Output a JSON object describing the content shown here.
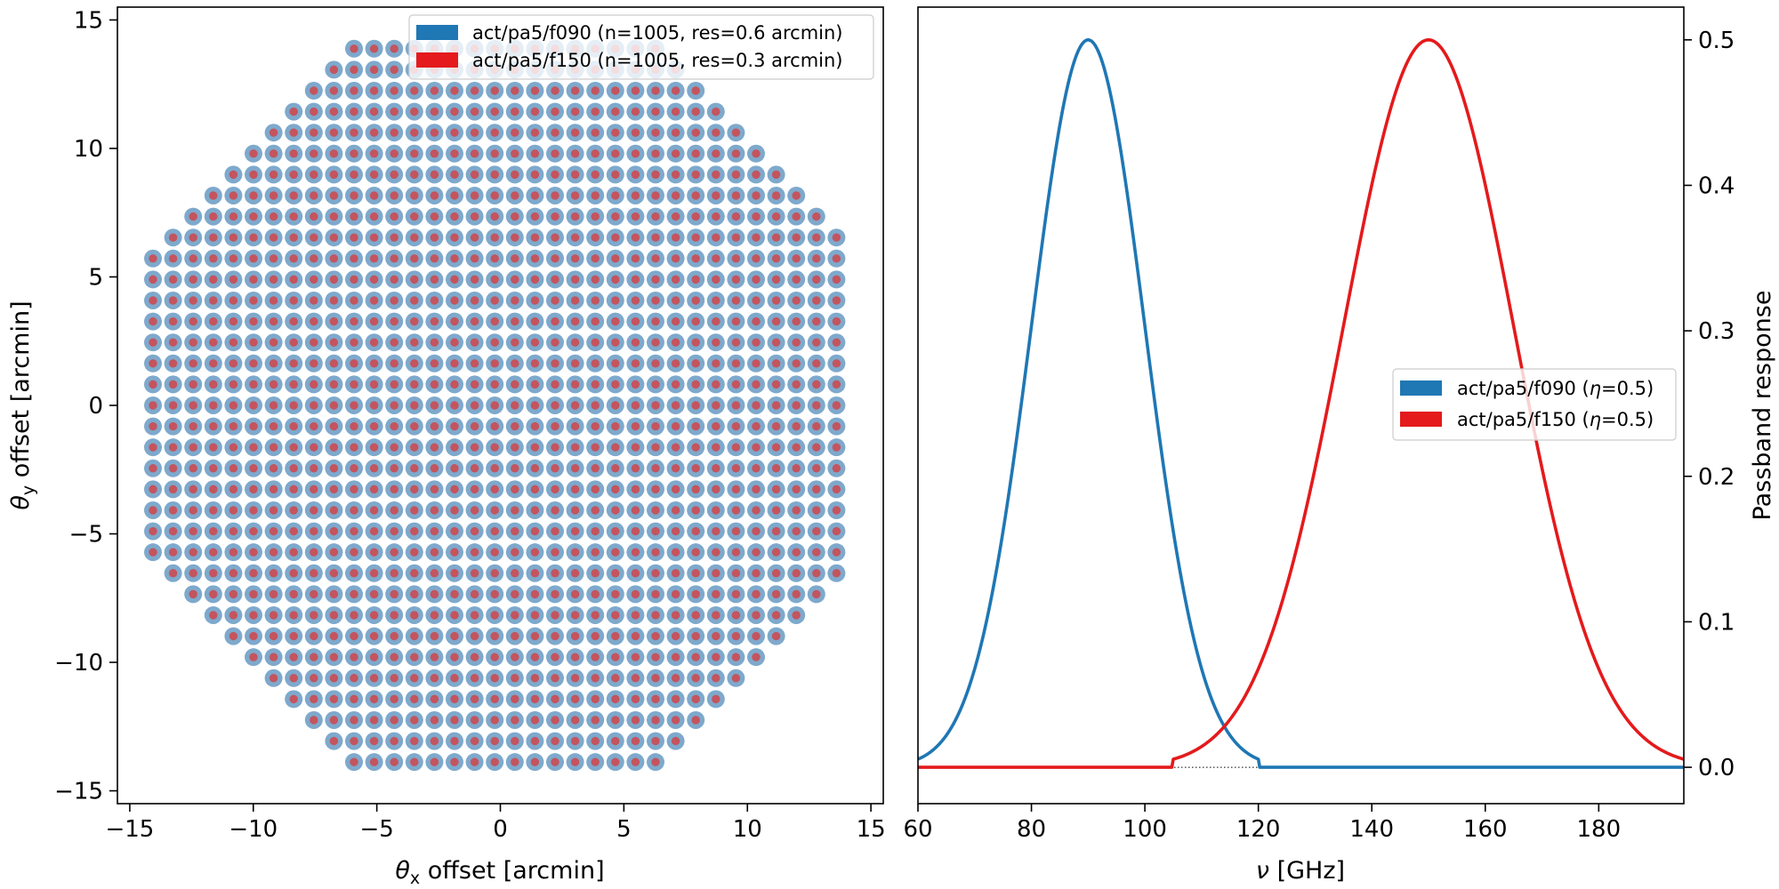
{
  "colors": {
    "f090": "#1f77b4",
    "f150": "#e41a1c",
    "dot_outer": "#7ea9cc",
    "dot_inner": "#c4545e"
  },
  "chart_data": [
    {
      "type": "scatter",
      "title": "",
      "xlabel_var": "θ",
      "xlabel_sub": "x",
      "xlabel_rest": " offset [arcmin]",
      "ylabel_var": "θ",
      "ylabel_sub": "y",
      "ylabel_rest": " offset [arcmin]",
      "xlim": [
        -15.5,
        15.5
      ],
      "ylim": [
        -15.5,
        15.5
      ],
      "xticks": [
        -15,
        -10,
        -5,
        0,
        5,
        10,
        15
      ],
      "yticks": [
        -15,
        -10,
        -5,
        0,
        5,
        10,
        15
      ],
      "tick_labels_x": [
        "−15",
        "−10",
        "−5",
        "0",
        "5",
        "10",
        "15"
      ],
      "tick_labels_y": [
        "−15",
        "−10",
        "−5",
        "0",
        "5",
        "10",
        "15"
      ],
      "grid": {
        "x_start": -14.06,
        "x_step": 0.8137,
        "x_count": 35,
        "y_start": -13.88,
        "y_step": 0.8165,
        "y_count": 35,
        "boundary_radius_x": 14.2,
        "boundary_radius_y": 14.3
      },
      "legend_position": "top-right",
      "series": [
        {
          "name": "act/pa5/f090 (n=1005, res=0.6 arcmin)",
          "color_key": "f090"
        },
        {
          "name": "act/pa5/f150 (n=1005, res=0.3 arcmin)",
          "color_key": "f150"
        }
      ]
    },
    {
      "type": "line",
      "title": "",
      "xlabel_var": "ν",
      "xlabel_rest": " [GHz]",
      "ylabel": "Passband response",
      "xlim": [
        60,
        195
      ],
      "ylim": [
        -0.025,
        0.5225
      ],
      "xticks": [
        60,
        80,
        100,
        120,
        140,
        160,
        180
      ],
      "yticks": [
        0.0,
        0.1,
        0.2,
        0.3,
        0.4,
        0.5
      ],
      "tick_labels_x": [
        "60",
        "80",
        "100",
        "120",
        "140",
        "160",
        "180"
      ],
      "tick_labels_y": [
        "0.0",
        "0.1",
        "0.2",
        "0.3",
        "0.4",
        "0.5"
      ],
      "y_axis_side": "right",
      "legend_position": "center-right",
      "series": [
        {
          "name": "act/pa5/f090 (η=0.5)",
          "legend_prefix": "act/pa5/f090 (",
          "legend_var": "η",
          "legend_suffix": "=0.5)",
          "color_key": "f090",
          "center": 90,
          "sigma": 10.0,
          "peak": 0.5,
          "support": [
            60,
            120
          ],
          "x": [
            60,
            65,
            70,
            75,
            80,
            85,
            90,
            95,
            100,
            105,
            110,
            115,
            120,
            195
          ],
          "y": [
            0.0056,
            0.022,
            0.068,
            0.162,
            0.303,
            0.441,
            0.5,
            0.441,
            0.303,
            0.162,
            0.068,
            0.022,
            0.0056,
            0.0
          ]
        },
        {
          "name": "act/pa5/f150 (η=0.5)",
          "legend_prefix": "act/pa5/f150 (",
          "legend_var": "η",
          "legend_suffix": "=0.5)",
          "color_key": "f150",
          "center": 150,
          "sigma": 15.0,
          "peak": 0.5,
          "support": [
            105,
            195
          ],
          "x": [
            60,
            105,
            110,
            120,
            130,
            140,
            150,
            160,
            170,
            180,
            190,
            195
          ],
          "y": [
            0.0,
            0.0056,
            0.014,
            0.068,
            0.205,
            0.401,
            0.5,
            0.401,
            0.205,
            0.068,
            0.014,
            0.0056
          ]
        }
      ]
    }
  ]
}
